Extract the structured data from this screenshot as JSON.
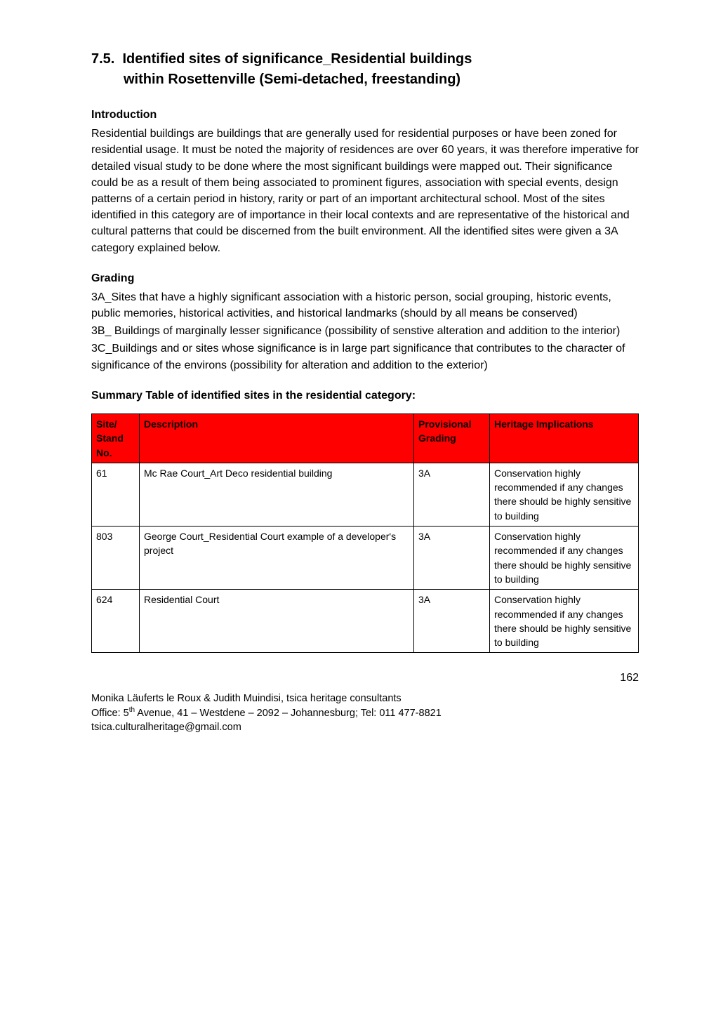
{
  "section": {
    "number": "7.5.",
    "title_line1": "Identified sites of significance_Residential buildings",
    "title_line2": "within Rosettenville (Semi-detached, freestanding)"
  },
  "intro": {
    "heading": "Introduction",
    "text": "Residential buildings are buildings that are generally used for residential purposes or have been zoned for residential usage. It must be noted the majority of residences are over 60 years, it was therefore imperative for detailed visual study to be done where the most significant buildings were mapped out. Their significance could be as a result of them being associated to prominent figures, association with special events, design patterns of a certain period in history, rarity or part of an important architectural school. Most of the sites identified in this category are of importance in their local contexts and are representative of the historical and cultural patterns that could be discerned from the built environment. All the identified sites were given a 3A category explained below."
  },
  "grading": {
    "heading": "Grading",
    "p1": "3A_Sites that have a highly significant association with a historic person, social grouping, historic events, public memories, historical activities, and historical landmarks (should by all means be conserved)",
    "p2": "3B_ Buildings of marginally lesser significance (possibility of senstive alteration and addition to the interior)",
    "p3": "3C_Buildings and or sites whose significance is in large part significance that contributes to the character of significance of the environs (possibility for alteration and addition to the exterior)"
  },
  "table": {
    "caption": "Summary Table of identified sites in the residential category:",
    "headers": {
      "site": "Site/ Stand No.",
      "desc": "Description",
      "grade": "Provisional Grading",
      "impl": "Heritage Implications"
    },
    "header_bg": "#ff0000",
    "rows": [
      {
        "site": "61",
        "desc": "Mc Rae Court_Art Deco residential building",
        "grade": "3A",
        "impl": "Conservation highly recommended if any changes there should be highly sensitive to building"
      },
      {
        "site": "803",
        "desc": "George Court_Residential Court example of a developer's project",
        "grade": "3A",
        "impl": "Conservation highly recommended if any changes there should be highly sensitive to building"
      },
      {
        "site": "624",
        "desc": "Residential Court",
        "grade": "3A",
        "impl": "Conservation highly recommended if any changes there should be highly sensitive to building"
      }
    ]
  },
  "page_number": "162",
  "footer": {
    "line1": "Monika Läuferts le Roux & Judith Muindisi, tsica heritage consultants",
    "line2_pre": "Office: 5",
    "line2_sup": "th",
    "line2_post": " Avenue, 41 – Westdene – 2092 – Johannesburg; Tel: 011 477-8821",
    "line3": "tsica.culturalheritage@gmail.com"
  }
}
